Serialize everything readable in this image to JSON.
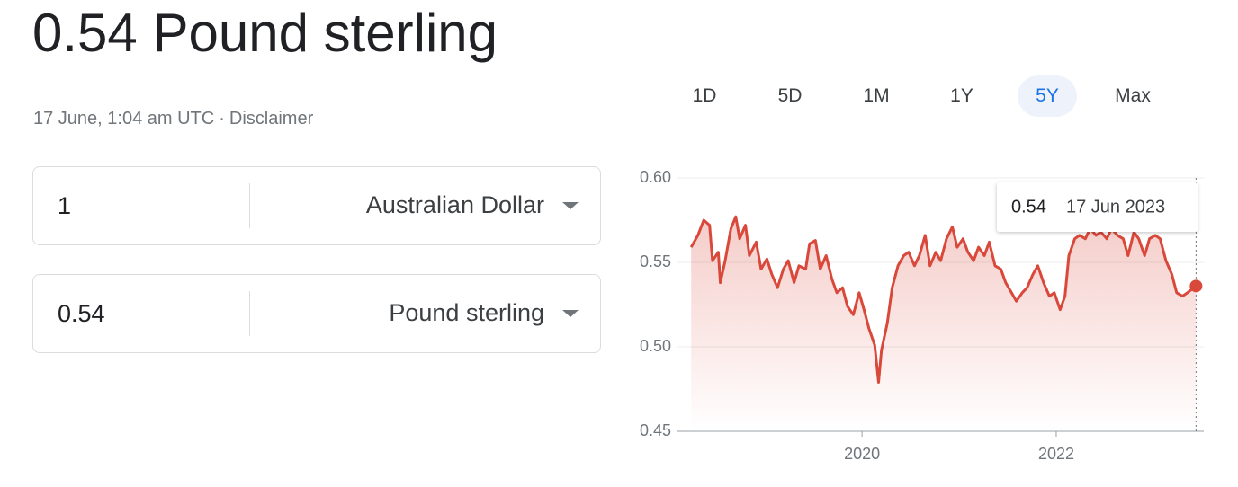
{
  "header": {
    "title": "0.54 Pound sterling",
    "timestamp": "17 June, 1:04 am UTC",
    "separator": "·",
    "disclaimer": "Disclaimer"
  },
  "converter": [
    {
      "amount": "1",
      "currency": "Australian Dollar"
    },
    {
      "amount": "0.54",
      "currency": "Pound sterling"
    }
  ],
  "ranges": [
    "1D",
    "5D",
    "1M",
    "1Y",
    "5Y",
    "Max"
  ],
  "selected_range": "5Y",
  "chart_data": {
    "type": "line",
    "color": "#d9493b",
    "x": [
      2018.24,
      2018.31,
      2018.37,
      2018.43,
      2018.46,
      2018.52,
      2018.54,
      2018.59,
      2018.65,
      2018.7,
      2018.74,
      2018.8,
      2018.84,
      2018.91,
      2018.96,
      2019.02,
      2019.07,
      2019.13,
      2019.19,
      2019.24,
      2019.3,
      2019.35,
      2019.42,
      2019.46,
      2019.52,
      2019.57,
      2019.63,
      2019.69,
      2019.74,
      2019.8,
      2019.85,
      2019.91,
      2019.97,
      2020.02,
      2020.07,
      2020.13,
      2020.17,
      2020.2,
      2020.26,
      2020.31,
      2020.37,
      2020.43,
      2020.48,
      2020.54,
      2020.59,
      2020.65,
      2020.7,
      2020.76,
      2020.81,
      2020.87,
      2020.93,
      2020.98,
      2021.04,
      2021.09,
      2021.15,
      2021.2,
      2021.26,
      2021.31,
      2021.37,
      2021.43,
      2021.48,
      2021.54,
      2021.59,
      2021.65,
      2021.7,
      2021.76,
      2021.81,
      2021.87,
      2021.93,
      2021.98,
      2022.04,
      2022.09,
      2022.13,
      2022.19,
      2022.24,
      2022.3,
      2022.35,
      2022.41,
      2022.46,
      2022.52,
      2022.57,
      2022.63,
      2022.69,
      2022.74,
      2022.8,
      2022.85,
      2022.91,
      2022.96,
      2023.02,
      2023.07,
      2023.13,
      2023.19,
      2023.24,
      2023.3,
      2023.35,
      2023.44
    ],
    "values": [
      0.559,
      0.566,
      0.575,
      0.572,
      0.551,
      0.556,
      0.538,
      0.551,
      0.57,
      0.577,
      0.564,
      0.572,
      0.554,
      0.562,
      0.546,
      0.552,
      0.543,
      0.535,
      0.546,
      0.551,
      0.538,
      0.548,
      0.546,
      0.561,
      0.563,
      0.546,
      0.554,
      0.54,
      0.532,
      0.535,
      0.524,
      0.519,
      0.532,
      0.522,
      0.511,
      0.501,
      0.479,
      0.498,
      0.514,
      0.535,
      0.548,
      0.554,
      0.556,
      0.548,
      0.554,
      0.566,
      0.548,
      0.556,
      0.551,
      0.564,
      0.571,
      0.559,
      0.564,
      0.556,
      0.551,
      0.559,
      0.554,
      0.562,
      0.548,
      0.546,
      0.538,
      0.532,
      0.527,
      0.532,
      0.535,
      0.543,
      0.548,
      0.538,
      0.53,
      0.532,
      0.522,
      0.53,
      0.554,
      0.564,
      0.566,
      0.564,
      0.57,
      0.566,
      0.568,
      0.564,
      0.57,
      0.566,
      0.564,
      0.554,
      0.568,
      0.564,
      0.554,
      0.564,
      0.566,
      0.564,
      0.551,
      0.543,
      0.532,
      0.53,
      0.532,
      0.536
    ],
    "xlim": [
      2018.09,
      2023.52
    ],
    "xticks": [
      2020,
      2022
    ],
    "ylim": [
      0.45,
      0.6
    ],
    "yticks": [
      0.45,
      {
        "value": 0.5,
        "label": "0.50"
      },
      0.55,
      {
        "value": 0.6,
        "label": "0.60"
      }
    ],
    "grid": true,
    "tooltip": {
      "value": "0.54",
      "date": "17 Jun 2023"
    }
  }
}
